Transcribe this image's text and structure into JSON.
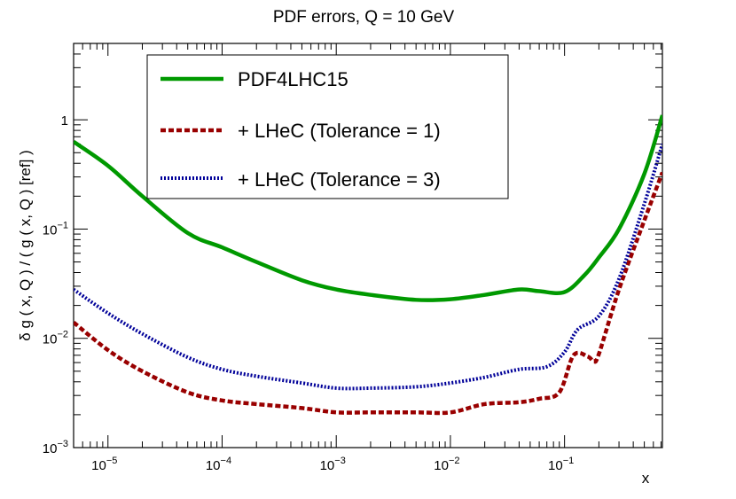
{
  "chart_data": {
    "type": "line",
    "title": "PDF errors, Q = 10 GeV",
    "xlabel": "x",
    "ylabel": "δ g ( x, Q ) / ( g ( x, Q ) [ref] )",
    "xscale": "log",
    "yscale": "log",
    "xlim": [
      5e-06,
      0.72
    ],
    "ylim": [
      0.001,
      5
    ],
    "x_ticks": [
      {
        "base": "10",
        "exp": "−5",
        "value": 1e-05
      },
      {
        "base": "10",
        "exp": "−4",
        "value": 0.0001
      },
      {
        "base": "10",
        "exp": "−3",
        "value": 0.001
      },
      {
        "base": "10",
        "exp": "−2",
        "value": 0.01
      },
      {
        "base": "10",
        "exp": "−1",
        "value": 0.1
      }
    ],
    "y_ticks": [
      {
        "base": "10",
        "exp": "−3",
        "value": 0.001
      },
      {
        "base": "10",
        "exp": "−2",
        "value": 0.01
      },
      {
        "base": "10",
        "exp": "−1",
        "value": 0.1
      },
      {
        "base": "1",
        "exp": "",
        "value": 1
      }
    ],
    "legend_position": "top-left",
    "series": [
      {
        "name": "PDF4LHC15",
        "color": "#009900",
        "style": "solid",
        "points": [
          [
            5e-06,
            0.63
          ],
          [
            1e-05,
            0.38
          ],
          [
            2e-05,
            0.2
          ],
          [
            5e-05,
            0.092
          ],
          [
            0.0001,
            0.068
          ],
          [
            0.0002,
            0.05
          ],
          [
            0.0005,
            0.034
          ],
          [
            0.001,
            0.028
          ],
          [
            0.002,
            0.025
          ],
          [
            0.005,
            0.0225
          ],
          [
            0.01,
            0.0228
          ],
          [
            0.02,
            0.025
          ],
          [
            0.04,
            0.028
          ],
          [
            0.06,
            0.027
          ],
          [
            0.1,
            0.0265
          ],
          [
            0.15,
            0.038
          ],
          [
            0.2,
            0.055
          ],
          [
            0.3,
            0.1
          ],
          [
            0.5,
            0.32
          ],
          [
            0.72,
            1.1
          ]
        ]
      },
      {
        "name": "+ LHeC (Tolerance = 1)",
        "color": "#990000",
        "style": "dashed",
        "points": [
          [
            5e-06,
            0.014
          ],
          [
            1e-05,
            0.0078
          ],
          [
            2e-05,
            0.005
          ],
          [
            5e-05,
            0.0032
          ],
          [
            0.0001,
            0.0027
          ],
          [
            0.0002,
            0.0025
          ],
          [
            0.0005,
            0.0023
          ],
          [
            0.001,
            0.0021
          ],
          [
            0.002,
            0.0021
          ],
          [
            0.005,
            0.0021
          ],
          [
            0.01,
            0.0021
          ],
          [
            0.02,
            0.0025
          ],
          [
            0.04,
            0.0026
          ],
          [
            0.06,
            0.0028
          ],
          [
            0.09,
            0.0032
          ],
          [
            0.12,
            0.007
          ],
          [
            0.16,
            0.0068
          ],
          [
            0.18,
            0.0062
          ],
          [
            0.2,
            0.0072
          ],
          [
            0.3,
            0.028
          ],
          [
            0.5,
            0.12
          ],
          [
            0.72,
            0.33
          ]
        ]
      },
      {
        "name": "+ LHeC (Tolerance = 3)",
        "color": "#000099",
        "style": "dotted",
        "points": [
          [
            5e-06,
            0.028
          ],
          [
            1e-05,
            0.017
          ],
          [
            2e-05,
            0.011
          ],
          [
            5e-05,
            0.0067
          ],
          [
            0.0001,
            0.0052
          ],
          [
            0.0002,
            0.0045
          ],
          [
            0.0005,
            0.0039
          ],
          [
            0.001,
            0.0035
          ],
          [
            0.002,
            0.0035
          ],
          [
            0.005,
            0.0036
          ],
          [
            0.01,
            0.0039
          ],
          [
            0.02,
            0.0044
          ],
          [
            0.04,
            0.0052
          ],
          [
            0.07,
            0.0055
          ],
          [
            0.1,
            0.0075
          ],
          [
            0.13,
            0.012
          ],
          [
            0.2,
            0.016
          ],
          [
            0.3,
            0.035
          ],
          [
            0.5,
            0.17
          ],
          [
            0.72,
            0.6
          ]
        ]
      }
    ]
  }
}
